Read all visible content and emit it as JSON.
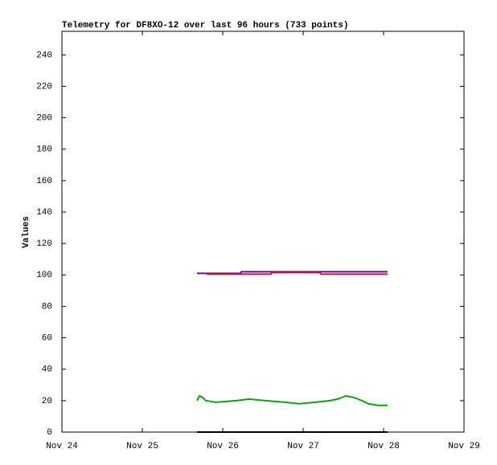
{
  "chart_data": {
    "type": "line",
    "title": "Telemetry for DF8XO-12 over last 96 hours (733 points)",
    "y_label": "Values",
    "xlim": [
      0,
      5
    ],
    "xticks": [
      {
        "value": 0,
        "label": "Nov 24"
      },
      {
        "value": 1,
        "label": "Nov 25"
      },
      {
        "value": 2,
        "label": "Nov 26"
      },
      {
        "value": 3,
        "label": "Nov 27"
      },
      {
        "value": 4,
        "label": "Nov 28"
      },
      {
        "value": 5,
        "label": "Nov 29"
      }
    ],
    "ylim": [
      0,
      255
    ],
    "yticks": [
      0,
      20,
      40,
      60,
      80,
      100,
      120,
      140,
      160,
      180,
      200,
      220,
      240
    ],
    "series": [
      {
        "color": "#5a10a0",
        "x": [
          1.68,
          2.22,
          2.23,
          4.05
        ],
        "values": [
          101,
          101,
          102,
          102
        ]
      },
      {
        "color": "#d0103a",
        "x": [
          1.8,
          2.6,
          2.61,
          3.21,
          3.22,
          4.05
        ],
        "values": [
          100.5,
          100.5,
          101.5,
          101.5,
          100.5,
          100.5
        ]
      },
      {
        "color": "#10a010",
        "x": [
          1.68,
          1.71,
          1.75,
          1.79,
          1.91,
          2.17,
          2.33,
          2.53,
          2.78,
          2.95,
          3.15,
          3.33,
          3.43,
          3.53,
          3.63,
          3.73,
          3.81,
          3.93,
          4.05
        ],
        "values": [
          20,
          23,
          22,
          20,
          19,
          20,
          21,
          20,
          19,
          18,
          19,
          20,
          21,
          23,
          22,
          20,
          18,
          17,
          17
        ]
      },
      {
        "color": "#000000",
        "x": [
          1.68,
          4.05
        ],
        "values": [
          0,
          0
        ]
      }
    ]
  }
}
